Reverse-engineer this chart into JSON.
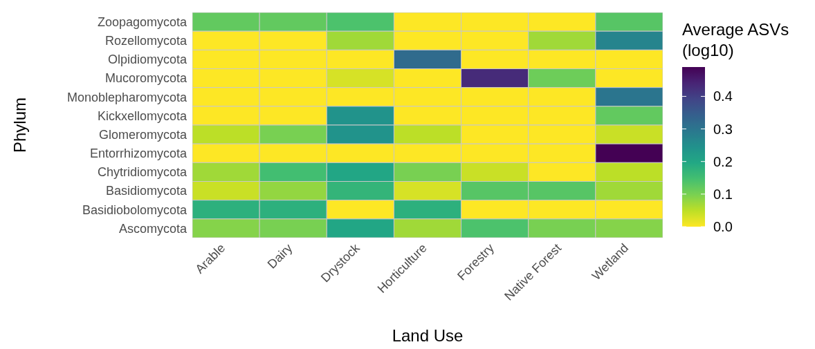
{
  "chart_data": {
    "type": "heatmap",
    "xlabel": "Land Use",
    "ylabel": "Phylum",
    "clabel": "Average ASVs (log10)",
    "categories": [
      "Arable",
      "Dairy",
      "Drystock",
      "Horticulture",
      "Forestry",
      "Native Forest",
      "Wetland"
    ],
    "y_categories": [
      "Zoopagomycota",
      "Rozellomycota",
      "Olpidiomycota",
      "Mucoromycota",
      "Monoblepharomycota",
      "Kickxellomycota",
      "Glomeromycota",
      "Entorrhizomycota",
      "Chytridiomycota",
      "Basidiomycota",
      "Basidiobolomycota",
      "Ascomycota"
    ],
    "cells": [
      [
        0.12,
        0.12,
        0.14,
        0,
        0,
        0,
        0.13
      ],
      [
        0,
        0,
        0.07,
        0,
        0,
        0.07,
        0.27
      ],
      [
        0,
        0,
        0,
        0.32,
        0,
        0,
        0
      ],
      [
        0,
        0,
        0.03,
        0,
        0.43,
        0.11,
        0
      ],
      [
        0,
        0,
        0,
        0,
        0,
        0,
        0.3
      ],
      [
        0,
        0,
        0.24,
        0,
        0,
        0,
        0.12
      ],
      [
        0.05,
        0.1,
        0.24,
        0.05,
        0,
        0,
        0.04
      ],
      [
        0,
        0,
        0,
        0,
        0,
        0,
        0.49
      ],
      [
        0.07,
        0.15,
        0.2,
        0.1,
        0.04,
        0,
        0.05
      ],
      [
        0.04,
        0.08,
        0.17,
        0.03,
        0.13,
        0.13,
        0.07
      ],
      [
        0.18,
        0.18,
        0,
        0.18,
        0,
        0,
        0
      ],
      [
        0.09,
        0.1,
        0.2,
        0.07,
        0.14,
        0.1,
        0.09
      ]
    ],
    "clim": [
      0,
      0.49
    ],
    "cticks": [
      {
        "value": 0,
        "label": "0.0"
      },
      0.1,
      0.2,
      0.3,
      0.4
    ]
  }
}
